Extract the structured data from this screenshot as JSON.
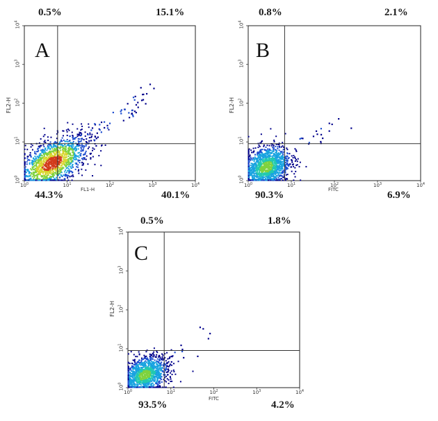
{
  "chart_data": [
    {
      "type": "scatter",
      "panel_label": "A",
      "xlabel": "FL1-H",
      "ylabel": "FL2-H",
      "xscale": "log",
      "yscale": "log",
      "xlim": [
        1,
        10000
      ],
      "ylim": [
        1,
        10000
      ],
      "x_ticks": [
        "10",
        "10",
        "10",
        "10",
        "10"
      ],
      "x_tick_exponents": [
        "0",
        "1",
        "2",
        "3",
        "4"
      ],
      "y_ticks": [
        "10",
        "10",
        "10",
        "10",
        "10"
      ],
      "y_tick_exponents": [
        "0",
        "1",
        "2",
        "3",
        "4"
      ],
      "quadrant_gates": {
        "x": 6,
        "y": 9
      },
      "quadrant_percentages": {
        "upper_left": "0.5%",
        "upper_right": "15.1%",
        "lower_left": "44.3%",
        "lower_right": "40.1%"
      },
      "density_colors": [
        "#00008b",
        "#1f4fd0",
        "#18a3e0",
        "#22c9b0",
        "#7fd23e",
        "#d7d52a",
        "#d23a1a"
      ]
    },
    {
      "type": "scatter",
      "panel_label": "B",
      "xlabel": "FITC",
      "ylabel": "FL2-H",
      "xscale": "log",
      "yscale": "log",
      "xlim": [
        1,
        10000
      ],
      "ylim": [
        1,
        10000
      ],
      "x_ticks": [
        "10",
        "10",
        "10",
        "10",
        "10"
      ],
      "x_tick_exponents": [
        "0",
        "1",
        "2",
        "3",
        "4"
      ],
      "y_ticks": [
        "10",
        "10",
        "10",
        "10",
        "10"
      ],
      "y_tick_exponents": [
        "0",
        "1",
        "2",
        "3",
        "4"
      ],
      "quadrant_gates": {
        "x": 7,
        "y": 9
      },
      "quadrant_percentages": {
        "upper_left": "0.8%",
        "upper_right": "2.1%",
        "lower_left": "90.3%",
        "lower_right": "6.9%"
      },
      "density_colors": [
        "#00008b",
        "#1f4fd0",
        "#18a3e0",
        "#22c9b0",
        "#7fd23e"
      ]
    },
    {
      "type": "scatter",
      "panel_label": "C",
      "xlabel": "FITC",
      "ylabel": "FL2-H",
      "xscale": "log",
      "yscale": "log",
      "xlim": [
        1,
        10000
      ],
      "ylim": [
        1,
        10000
      ],
      "x_ticks": [
        "10",
        "10",
        "10",
        "10",
        "10"
      ],
      "x_tick_exponents": [
        "0",
        "1",
        "2",
        "3",
        "4"
      ],
      "y_ticks": [
        "10",
        "10",
        "10",
        "10",
        "10"
      ],
      "y_tick_exponents": [
        "0",
        "1",
        "2",
        "3",
        "4"
      ],
      "quadrant_gates": {
        "x": 7,
        "y": 9
      },
      "quadrant_percentages": {
        "upper_left": "0.5%",
        "upper_right": "1.8%",
        "lower_left": "93.5%",
        "lower_right": "4.2%"
      },
      "density_colors": [
        "#00008b",
        "#1f4fd0",
        "#18a3e0",
        "#22c9b0",
        "#7fd23e"
      ]
    }
  ]
}
